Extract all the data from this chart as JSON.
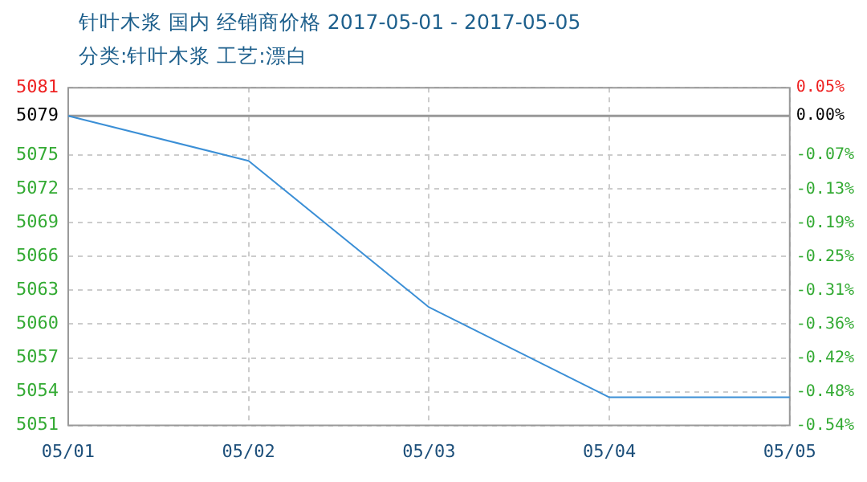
{
  "chart_data": {
    "type": "line",
    "title": "针叶木浆 国内 经销商价格 2017-05-01 - 2017-05-05",
    "subtitle": "分类:针叶木浆 工艺:漂白",
    "categories": [
      "05/01",
      "05/02",
      "05/03",
      "05/04",
      "05/05"
    ],
    "series": [
      {
        "color": "#3b8fd6",
        "values": [
          5079,
          5075,
          5062,
          5054,
          5054
        ]
      }
    ],
    "ylim": [
      5051.5,
      5081.5
    ],
    "yticks": [
      {
        "value": 5081.5,
        "label": "5081"
      },
      5079,
      {
        "value": 5075.5,
        "label": "5075"
      },
      {
        "value": 5072.5,
        "label": "5072"
      },
      {
        "value": 5069.5,
        "label": "5069"
      },
      {
        "value": 5066.5,
        "label": "5066"
      },
      {
        "value": 5063.5,
        "label": "5063"
      },
      {
        "value": 5060.5,
        "label": "5060"
      },
      {
        "value": 5057.5,
        "label": "5057"
      },
      {
        "value": 5054.5,
        "label": "5054"
      },
      {
        "value": 5051.5,
        "label": "5051"
      }
    ],
    "y2lim": [
      -0.5414,
      0.0492
    ],
    "y2ticks": [
      {
        "value": 0.0492,
        "label": "0.05%"
      },
      {
        "value": 0,
        "label": "0.00%"
      },
      {
        "value": -0.0689,
        "label": "-0.07%"
      },
      {
        "value": -0.128,
        "label": "-0.13%"
      },
      {
        "value": -0.187,
        "label": "-0.19%"
      },
      {
        "value": -0.2461,
        "label": "-0.25%"
      },
      {
        "value": -0.3052,
        "label": "-0.31%"
      },
      {
        "value": -0.3642,
        "label": "-0.36%"
      },
      {
        "value": -0.4233,
        "label": "-0.42%"
      },
      {
        "value": -0.4824,
        "label": "-0.48%"
      },
      {
        "value": -0.5414,
        "label": "-0.54%"
      }
    ],
    "ref_lines": [
      {
        "axis": "y",
        "value": 5079,
        "color": "#999999"
      }
    ],
    "grid": true,
    "legend": false,
    "marker": "none",
    "line_style": "solid"
  }
}
